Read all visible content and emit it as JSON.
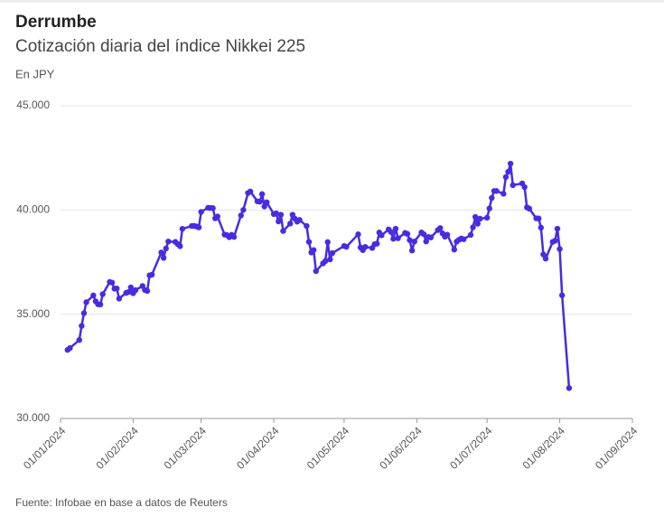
{
  "chart_data": {
    "type": "line",
    "title": "Derrumbe",
    "subtitle": "Cotización diaria del índice Nikkei 225",
    "y_label": "En JPY",
    "source": "Fuente: Infobae en base a datos de Reuters",
    "grid": true,
    "ylim": [
      30000,
      45000
    ],
    "yticks": [
      {
        "value": 30000,
        "label": "30.000"
      },
      {
        "value": 35000,
        "label": "35.000"
      },
      {
        "value": 40000,
        "label": "40.000"
      },
      {
        "value": 45000,
        "label": "45.000"
      }
    ],
    "xlim": [
      "2024-01-01",
      "2024-09-01"
    ],
    "xticks": [
      {
        "value": "2024-01-01",
        "label": "01/01/2024"
      },
      {
        "value": "2024-02-01",
        "label": "01/02/2024"
      },
      {
        "value": "2024-03-01",
        "label": "01/03/2024"
      },
      {
        "value": "2024-04-01",
        "label": "01/04/2024"
      },
      {
        "value": "2024-05-01",
        "label": "01/05/2024"
      },
      {
        "value": "2024-06-01",
        "label": "01/06/2024"
      },
      {
        "value": "2024-07-01",
        "label": "01/07/2024"
      },
      {
        "value": "2024-08-01",
        "label": "01/08/2024"
      },
      {
        "value": "2024-09-01",
        "label": "01/09/2024"
      }
    ],
    "x": [
      "2024-01-04",
      "2024-01-05",
      "2024-01-09",
      "2024-01-10",
      "2024-01-11",
      "2024-01-12",
      "2024-01-15",
      "2024-01-16",
      "2024-01-17",
      "2024-01-18",
      "2024-01-19",
      "2024-01-22",
      "2024-01-23",
      "2024-01-24",
      "2024-01-25",
      "2024-01-26",
      "2024-01-29",
      "2024-01-30",
      "2024-01-31",
      "2024-02-01",
      "2024-02-02",
      "2024-02-05",
      "2024-02-06",
      "2024-02-07",
      "2024-02-08",
      "2024-02-09",
      "2024-02-13",
      "2024-02-14",
      "2024-02-15",
      "2024-02-16",
      "2024-02-19",
      "2024-02-20",
      "2024-02-21",
      "2024-02-22",
      "2024-02-26",
      "2024-02-27",
      "2024-02-28",
      "2024-02-29",
      "2024-03-01",
      "2024-03-04",
      "2024-03-05",
      "2024-03-06",
      "2024-03-07",
      "2024-03-08",
      "2024-03-11",
      "2024-03-12",
      "2024-03-13",
      "2024-03-14",
      "2024-03-15",
      "2024-03-18",
      "2024-03-19",
      "2024-03-21",
      "2024-03-22",
      "2024-03-25",
      "2024-03-26",
      "2024-03-27",
      "2024-03-28",
      "2024-03-29",
      "2024-04-01",
      "2024-04-02",
      "2024-04-03",
      "2024-04-04",
      "2024-04-05",
      "2024-04-08",
      "2024-04-09",
      "2024-04-10",
      "2024-04-11",
      "2024-04-12",
      "2024-04-15",
      "2024-04-16",
      "2024-04-17",
      "2024-04-18",
      "2024-04-19",
      "2024-04-22",
      "2024-04-23",
      "2024-04-24",
      "2024-04-25",
      "2024-04-26",
      "2024-05-01",
      "2024-05-02",
      "2024-05-07",
      "2024-05-08",
      "2024-05-09",
      "2024-05-10",
      "2024-05-13",
      "2024-05-14",
      "2024-05-15",
      "2024-05-16",
      "2024-05-17",
      "2024-05-20",
      "2024-05-21",
      "2024-05-22",
      "2024-05-23",
      "2024-05-24",
      "2024-05-27",
      "2024-05-28",
      "2024-05-29",
      "2024-05-30",
      "2024-05-31",
      "2024-06-03",
      "2024-06-04",
      "2024-06-05",
      "2024-06-06",
      "2024-06-07",
      "2024-06-10",
      "2024-06-11",
      "2024-06-12",
      "2024-06-13",
      "2024-06-14",
      "2024-06-17",
      "2024-06-18",
      "2024-06-19",
      "2024-06-20",
      "2024-06-21",
      "2024-06-24",
      "2024-06-25",
      "2024-06-26",
      "2024-06-27",
      "2024-06-28",
      "2024-07-01",
      "2024-07-02",
      "2024-07-03",
      "2024-07-04",
      "2024-07-05",
      "2024-07-08",
      "2024-07-09",
      "2024-07-10",
      "2024-07-11",
      "2024-07-12",
      "2024-07-16",
      "2024-07-17",
      "2024-07-18",
      "2024-07-19",
      "2024-07-22",
      "2024-07-23",
      "2024-07-24",
      "2024-07-25",
      "2024-07-26",
      "2024-07-29",
      "2024-07-30",
      "2024-07-31",
      "2024-08-01",
      "2024-08-02",
      "2024-08-05"
    ],
    "series": [
      {
        "name": "Nikkei 225",
        "color": "#4a2be0",
        "values": [
          33288,
          33377,
          33763,
          34441,
          35049,
          35577,
          35901,
          35619,
          35477,
          35466,
          35963,
          36546,
          36517,
          36226,
          36236,
          35751,
          36026,
          36065,
          36287,
          36011,
          36158,
          36354,
          36160,
          36119,
          36863,
          36897,
          37963,
          37703,
          38157,
          38487,
          38470,
          38363,
          38262,
          39098,
          39233,
          39239,
          39208,
          39166,
          39910,
          40109,
          40098,
          40090,
          39598,
          39688,
          38820,
          38797,
          38695,
          38807,
          38708,
          39740,
          40003,
          40815,
          40888,
          40414,
          40398,
          40762,
          40168,
          40369,
          39803,
          39838,
          39451,
          39773,
          38992,
          39347,
          39773,
          39581,
          39442,
          39523,
          39232,
          38471,
          37962,
          38079,
          37068,
          37438,
          37552,
          38460,
          37628,
          37934,
          38274,
          38236,
          38835,
          38202,
          38073,
          38229,
          38179,
          38356,
          38385,
          38920,
          38787,
          39069,
          38946,
          38617,
          39103,
          38646,
          38900,
          38855,
          38556,
          38054,
          38487,
          38923,
          38837,
          38490,
          38703,
          38683,
          39038,
          39134,
          38876,
          38720,
          38814,
          38102,
          38482,
          38570,
          38633,
          38596,
          38804,
          39173,
          39667,
          39341,
          39583,
          39631,
          40074,
          40580,
          40913,
          40912,
          40780,
          41580,
          41831,
          42224,
          41190,
          41275,
          41097,
          40126,
          40063,
          39599,
          39594,
          39154,
          37869,
          37667,
          38468,
          38525,
          39102,
          38126,
          35910,
          31458
        ]
      }
    ]
  }
}
